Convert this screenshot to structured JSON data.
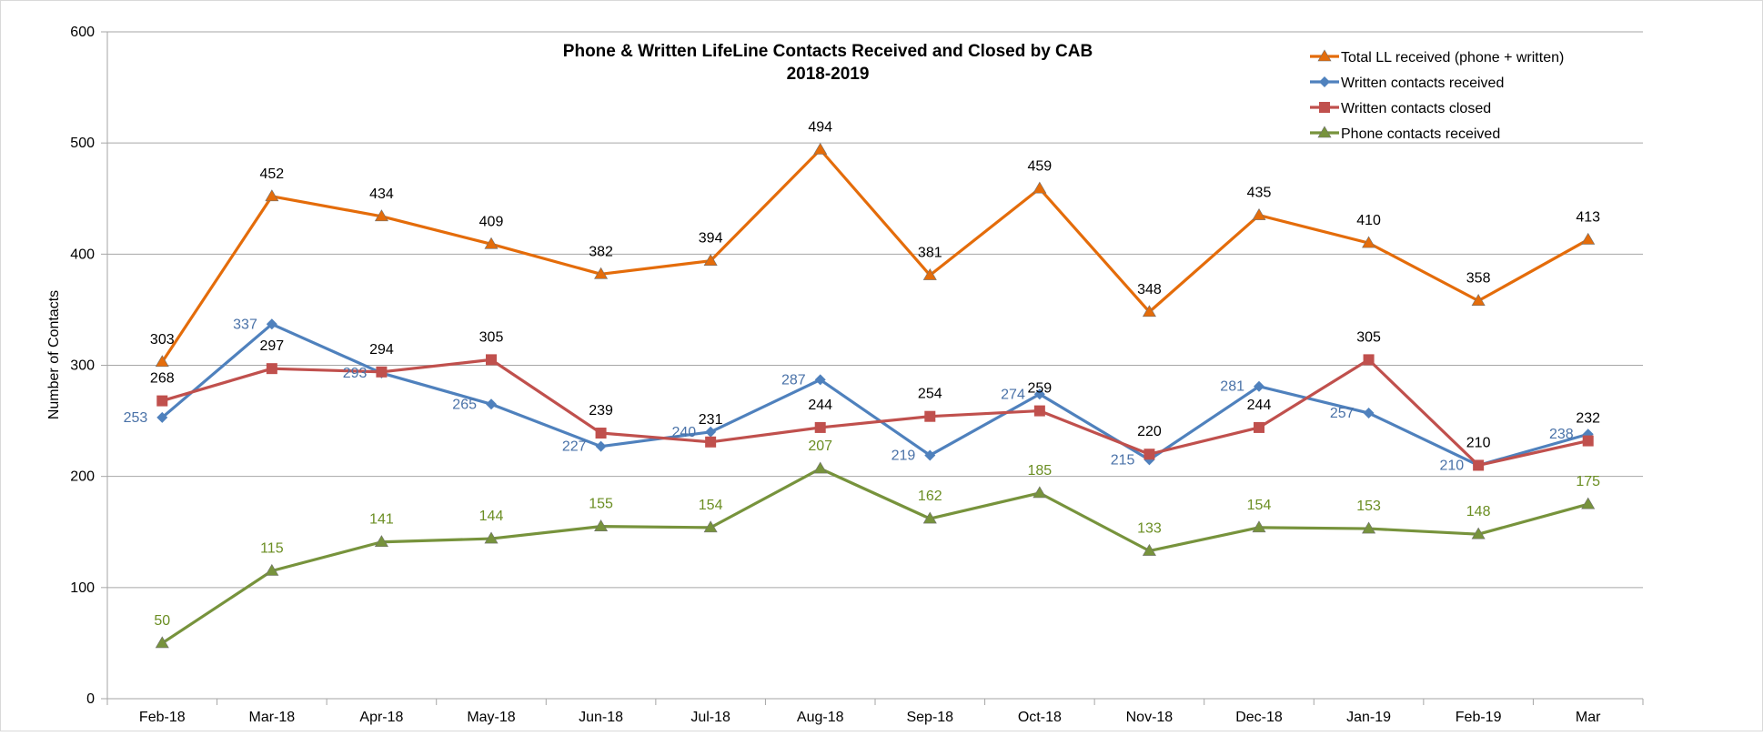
{
  "chart_data": {
    "type": "line",
    "title": "Phone & Written  LifeLine Contacts  Received and Closed by CAB",
    "subtitle": "2018-2019",
    "xlabel": "",
    "ylabel": "Number of Contacts",
    "ylim": [
      0,
      600
    ],
    "yticks": [
      0,
      100,
      200,
      300,
      400,
      500,
      600
    ],
    "grid": true,
    "legend_position": "top-right",
    "categories": [
      "Feb-18",
      "Mar-18",
      "Apr-18",
      "May-18",
      "Jun-18",
      "Jul-18",
      "Aug-18",
      "Sep-18",
      "Oct-18",
      "Nov-18",
      "Dec-18",
      "Jan-19",
      "Feb-19",
      "Mar"
    ],
    "series": [
      {
        "name": "Total LL received (phone + written)",
        "color": "#E46C0A",
        "marker": "triangle",
        "label_color": "#000000",
        "values": [
          303,
          452,
          434,
          409,
          382,
          394,
          494,
          381,
          459,
          348,
          435,
          410,
          358,
          413
        ]
      },
      {
        "name": "Written contacts received",
        "color": "#4F81BD",
        "marker": "diamond",
        "label_color": "#4A72A8",
        "values": [
          253,
          337,
          293,
          265,
          227,
          240,
          287,
          219,
          274,
          215,
          281,
          257,
          210,
          238
        ]
      },
      {
        "name": "Written contacts closed",
        "color": "#C0504D",
        "marker": "square",
        "label_color": "#000000",
        "values": [
          268,
          297,
          294,
          305,
          239,
          231,
          244,
          254,
          259,
          220,
          244,
          305,
          210,
          232
        ]
      },
      {
        "name": "Phone contacts received",
        "color": "#77933C",
        "marker": "triangle",
        "label_color": "#6B8E23",
        "values": [
          50,
          115,
          141,
          144,
          155,
          154,
          207,
          162,
          185,
          133,
          154,
          153,
          148,
          175
        ]
      }
    ]
  }
}
